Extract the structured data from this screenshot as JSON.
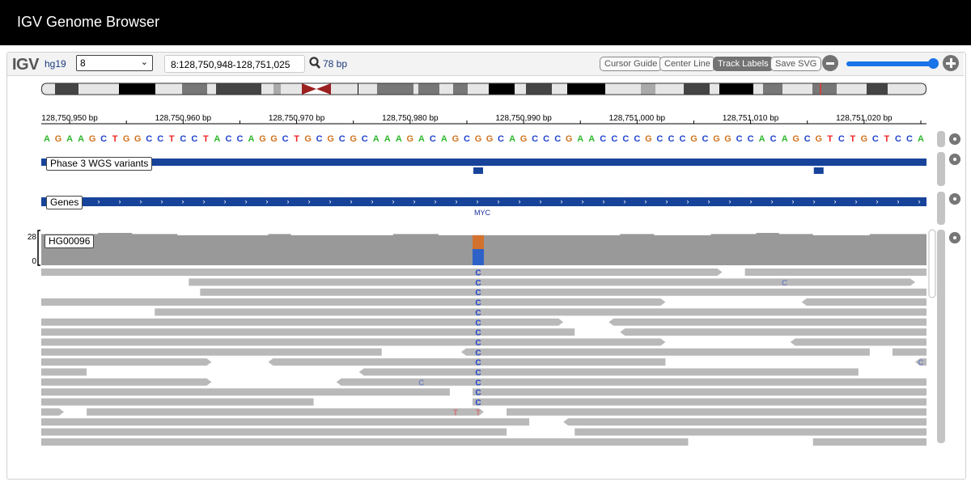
{
  "window": {
    "title": "IGV Genome Browser"
  },
  "toolbar": {
    "logo": "IGV",
    "genome": "hg19",
    "chromosome": "8",
    "locus": "8:128,750,948-128,751,025",
    "width_label": "78 bp",
    "buttons": [
      {
        "label": "Cursor Guide",
        "active": false
      },
      {
        "label": "Center Line",
        "active": false
      },
      {
        "label": "Track Labels",
        "active": true
      },
      {
        "label": "Save SVG",
        "active": false
      }
    ],
    "zoom_level": 0.95
  },
  "view": {
    "start": 128750948,
    "end": 128751025,
    "marker_color": "#e8332a"
  },
  "ruler": {
    "ticks": [
      {
        "pos": 128750950,
        "label": "128,750,950 bp"
      },
      {
        "pos": 128750960,
        "label": "128,750,960 bp"
      },
      {
        "pos": 128750970,
        "label": "128,750,970 bp"
      },
      {
        "pos": 128750980,
        "label": "128,750,980 bp"
      },
      {
        "pos": 128750990,
        "label": "128,750,990 bp"
      },
      {
        "pos": 128751000,
        "label": "128,751,000 bp"
      },
      {
        "pos": 128751010,
        "label": "128,751,010 bp"
      },
      {
        "pos": 128751020,
        "label": "128,751,020 bp"
      }
    ]
  },
  "sequence": "AGAAGCTGGCCTCCTACCAGGCTGCGCGCAAAGACAGCGGCAGCCCGAACCCCGCCCGCGGCCACAGCGTCTGCTCCA",
  "base_colors": {
    "A": "#2eb82e",
    "C": "#2244cc",
    "G": "#d1741f",
    "T": "#ee2222"
  },
  "tracks": {
    "variants": {
      "label": "Phase 3 WGS variants",
      "color": "#17449a",
      "sites": [
        128750986,
        128751016
      ]
    },
    "genes": {
      "label": "Genes",
      "color": "#17449a",
      "gene_name": "MYC",
      "strand": "+"
    },
    "alignment": {
      "label": "HG00096",
      "scale_max": "28",
      "scale_min": "0",
      "coverage_color": "#999999",
      "read_color": "#b9b9b9",
      "coverage": [
        27,
        27,
        27,
        27,
        27,
        28,
        28,
        28,
        27,
        27,
        27,
        27,
        26,
        26,
        26,
        26,
        26,
        26,
        26,
        26,
        27,
        27,
        26,
        26,
        26,
        26,
        26,
        26,
        26,
        26,
        26,
        27,
        27,
        27,
        27,
        26,
        26,
        26,
        26,
        26,
        26,
        26,
        26,
        26,
        26,
        26,
        26,
        26,
        26,
        26,
        26,
        27,
        27,
        27,
        26,
        26,
        26,
        26,
        26,
        27,
        27,
        27,
        27,
        28,
        28,
        27,
        27,
        27,
        26,
        26,
        26,
        26,
        26,
        27,
        27,
        27,
        27,
        27
      ],
      "variant_site": {
        "pos": 128750986,
        "alleles": [
          {
            "base": "G",
            "count": 12
          },
          {
            "base": "C",
            "count": 14
          }
        ]
      },
      "rows": [
        {
          "reads": [
            [
              128750948,
              128751008,
              "+"
            ],
            [
              128751010,
              128751026,
              "+"
            ]
          ],
          "mismatches": [
            [
              128750986,
              "C",
              false
            ]
          ]
        },
        {
          "reads": [
            [
              128750961,
              128751025,
              "+"
            ]
          ],
          "mismatches": [
            [
              128750986,
              "C",
              false
            ],
            [
              128751013,
              "C",
              true
            ]
          ]
        },
        {
          "reads": [
            [
              128750962,
              128751026,
              "+"
            ]
          ],
          "mismatches": [
            [
              128750986,
              "C",
              false
            ]
          ]
        },
        {
          "reads": [
            [
              128750948,
              128751003,
              "+"
            ],
            [
              128751015,
              128751026,
              "-"
            ]
          ],
          "mismatches": [
            [
              128750986,
              "C",
              false
            ]
          ]
        },
        {
          "reads": [
            [
              128750958,
              128751026,
              "+"
            ]
          ],
          "mismatches": [
            [
              128750986,
              "C",
              false
            ]
          ]
        },
        {
          "reads": [
            [
              128750948,
              128750994,
              "+"
            ],
            [
              128750998,
              128751026,
              "-"
            ]
          ],
          "mismatches": [
            [
              128750986,
              "C",
              false
            ]
          ]
        },
        {
          "reads": [
            [
              128750948,
              128750995,
              "-"
            ],
            [
              128750999,
              128751026,
              "-"
            ]
          ],
          "mismatches": [
            [
              128750986,
              "C",
              false
            ]
          ]
        },
        {
          "reads": [
            [
              128750948,
              128751003,
              "+"
            ],
            [
              128751014,
              128751026,
              "-"
            ]
          ],
          "mismatches": [
            [
              128750986,
              "C",
              false
            ]
          ]
        },
        {
          "reads": [
            [
              128750948,
              128750978,
              "-"
            ],
            [
              128750985,
              128751021,
              "-"
            ],
            [
              128751023,
              128751026,
              "+"
            ]
          ],
          "mismatches": [
            [
              128750986,
              "C",
              false
            ]
          ]
        },
        {
          "reads": [
            [
              128750948,
              128750963,
              "+"
            ],
            [
              128750968,
              128751003,
              "-"
            ],
            [
              128751025,
              128751026,
              "-"
            ]
          ],
          "mismatches": [
            [
              128750986,
              "C",
              false
            ],
            [
              128751025,
              "C",
              true
            ]
          ]
        },
        {
          "reads": [
            [
              128750948,
              128750952,
              "-"
            ],
            [
              128750976,
              128751020,
              "-"
            ]
          ],
          "mismatches": [
            [
              128750986,
              "C",
              false
            ]
          ]
        },
        {
          "reads": [
            [
              128750948,
              128750963,
              "+"
            ],
            [
              128750974,
              128751026,
              "-"
            ]
          ],
          "mismatches": [
            [
              128750986,
              "C",
              false
            ],
            [
              128750981,
              "C",
              true
            ]
          ]
        },
        {
          "reads": [
            [
              128750948,
              128750984,
              "-"
            ],
            [
              128750986,
              128751026,
              "+"
            ]
          ],
          "mismatches": [
            [
              128750986,
              "C",
              false
            ]
          ]
        },
        {
          "reads": [
            [
              128750948,
              128750972,
              "-"
            ],
            [
              128750986,
              128751026,
              "+"
            ]
          ],
          "mismatches": [
            [
              128750986,
              "C",
              false
            ]
          ]
        },
        {
          "reads": [
            [
              128750948,
              128750950,
              "+"
            ],
            [
              128750952,
              128750987,
              "+"
            ],
            [
              128750989,
              128751026,
              "+"
            ]
          ],
          "mismatches": [
            [
              128750984,
              "T",
              true
            ],
            [
              128750986,
              "T",
              true
            ]
          ]
        },
        {
          "reads": [
            [
              128750948,
              128750991,
              "-"
            ],
            [
              128750994,
              128751026,
              "-"
            ]
          ],
          "mismatches": []
        },
        {
          "reads": [
            [
              128750948,
              128750989,
              "-"
            ],
            [
              128750995,
              128751026,
              "+"
            ]
          ],
          "mismatches": []
        },
        {
          "reads": [
            [
              128750948,
              128751005,
              "-"
            ],
            [
              128751016,
              128751026,
              "+"
            ]
          ],
          "mismatches": []
        }
      ]
    }
  },
  "icons": {
    "search": "search-icon",
    "zoom_out": "minus-circle-icon",
    "zoom_in": "plus-circle-icon",
    "settings": "gear-icon"
  }
}
